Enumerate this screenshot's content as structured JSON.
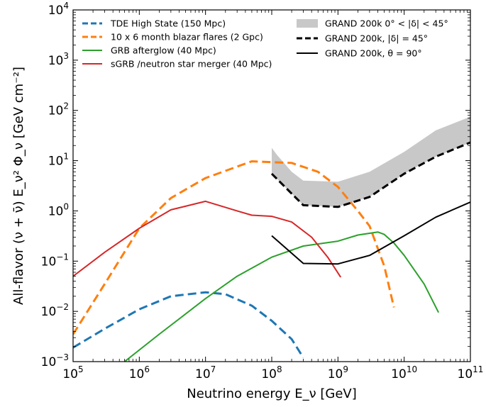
{
  "chart_data": {
    "type": "line",
    "xlabel": "Neutrino energy E_ν [GeV]",
    "ylabel": "All-flavor (ν + ν̄) E_ν² Φ_ν [GeV cm⁻²]",
    "xscale": "log",
    "yscale": "log",
    "xlim": [
      100000,
      100000000000
    ],
    "ylim": [
      0.001,
      10000
    ],
    "x_ticks": [
      {
        "base": "10",
        "exp": "5"
      },
      {
        "base": "10",
        "exp": "6"
      },
      {
        "base": "10",
        "exp": "7"
      },
      {
        "base": "10",
        "exp": "8"
      },
      {
        "base": "10",
        "exp": "9"
      },
      {
        "base": "10",
        "exp": "10"
      },
      {
        "base": "10",
        "exp": "11"
      }
    ],
    "y_ticks": [
      {
        "base": "10",
        "exp": "−3"
      },
      {
        "base": "10",
        "exp": "−2"
      },
      {
        "base": "10",
        "exp": "−1"
      },
      {
        "base": "10",
        "exp": "0"
      },
      {
        "base": "10",
        "exp": "1"
      },
      {
        "base": "10",
        "exp": "2"
      },
      {
        "base": "10",
        "exp": "3"
      },
      {
        "base": "10",
        "exp": "4"
      }
    ],
    "grid": false,
    "legend_left_placement": "top-left",
    "legend_right_placement": "top-right",
    "band": {
      "name": "GRAND 200k 0° < |δ| < 45°",
      "color": "#c8c8c8",
      "upper": [
        [
          100000000,
          18
        ],
        [
          120000000,
          13
        ],
        [
          200000000,
          6
        ],
        [
          300000000,
          4
        ],
        [
          1000000000,
          3.8
        ],
        [
          3000000000,
          6
        ],
        [
          10000000000,
          15
        ],
        [
          30000000000,
          40
        ],
        [
          100000000000,
          75
        ]
      ],
      "lower": [
        [
          100000000,
          5.5
        ],
        [
          300000000,
          1.3
        ],
        [
          1000000000,
          1.2
        ],
        [
          3000000000,
          1.9
        ],
        [
          10000000000,
          5.5
        ],
        [
          30000000000,
          12
        ],
        [
          100000000000,
          23
        ]
      ]
    },
    "series": [
      {
        "name": "TDE High State (150 Mpc)",
        "color": "#1f77b4",
        "style": "dashed",
        "points": [
          [
            100000,
            0.0019
          ],
          [
            300000,
            0.0045
          ],
          [
            1000000,
            0.011
          ],
          [
            3000000,
            0.02
          ],
          [
            10000000,
            0.024
          ],
          [
            20000000,
            0.022
          ],
          [
            50000000,
            0.013
          ],
          [
            100000000,
            0.0065
          ],
          [
            200000000,
            0.0028
          ],
          [
            300000000,
            0.0012
          ]
        ]
      },
      {
        "name": "10 x 6 month blazar flares (2 Gpc)",
        "color": "#ff7f0e",
        "style": "dashed",
        "points": [
          [
            100000,
            0.0035
          ],
          [
            300000,
            0.035
          ],
          [
            1000000,
            0.45
          ],
          [
            3000000,
            1.8
          ],
          [
            10000000,
            4.5
          ],
          [
            50000000,
            9.7
          ],
          [
            200000000,
            9
          ],
          [
            500000000,
            6
          ],
          [
            1000000000,
            3
          ],
          [
            2000000000,
            1
          ],
          [
            3000000000,
            0.5
          ],
          [
            5000000000,
            0.08
          ],
          [
            7000000000,
            0.012
          ]
        ]
      },
      {
        "name": "GRB afterglow (40 Mpc)",
        "color": "#2ca02c",
        "style": "solid",
        "points": [
          [
            600000,
            0.001
          ],
          [
            2000000,
            0.0035
          ],
          [
            10000000,
            0.018
          ],
          [
            30000000,
            0.05
          ],
          [
            100000000,
            0.12
          ],
          [
            300000000,
            0.2
          ],
          [
            1000000000,
            0.25
          ],
          [
            2000000000,
            0.33
          ],
          [
            4000000000,
            0.38
          ],
          [
            5000000000,
            0.34
          ],
          [
            7000000000,
            0.23
          ],
          [
            10000000000,
            0.13
          ],
          [
            20000000000,
            0.035
          ],
          [
            33000000000,
            0.0095
          ]
        ]
      },
      {
        "name": "sGRB /neutron star merger (40 Mpc)",
        "color": "#d62728",
        "style": "solid",
        "points": [
          [
            100000,
            0.05
          ],
          [
            300000,
            0.15
          ],
          [
            1000000,
            0.45
          ],
          [
            3000000,
            1.05
          ],
          [
            10000000,
            1.55
          ],
          [
            30000000,
            1.0
          ],
          [
            50000000,
            0.82
          ],
          [
            100000000,
            0.78
          ],
          [
            200000000,
            0.6
          ],
          [
            400000000,
            0.3
          ],
          [
            700000000,
            0.12
          ],
          [
            1100000000,
            0.048
          ]
        ]
      },
      {
        "name": "GRAND 200k, |δ| = 45°",
        "color": "#000000",
        "style": "dashed",
        "points": [
          [
            100000000,
            5.5
          ],
          [
            300000000,
            1.3
          ],
          [
            1000000000,
            1.2
          ],
          [
            3000000000,
            1.9
          ],
          [
            10000000000,
            5.5
          ],
          [
            30000000000,
            12
          ],
          [
            100000000000,
            23
          ]
        ]
      },
      {
        "name": "GRAND 200k, θ = 90°",
        "color": "#000000",
        "style": "solid",
        "points": [
          [
            100000000,
            0.32
          ],
          [
            300000000,
            0.09
          ],
          [
            1000000000,
            0.088
          ],
          [
            3000000000,
            0.13
          ],
          [
            10000000000,
            0.32
          ],
          [
            30000000000,
            0.75
          ],
          [
            100000000000,
            1.5
          ]
        ]
      }
    ]
  }
}
